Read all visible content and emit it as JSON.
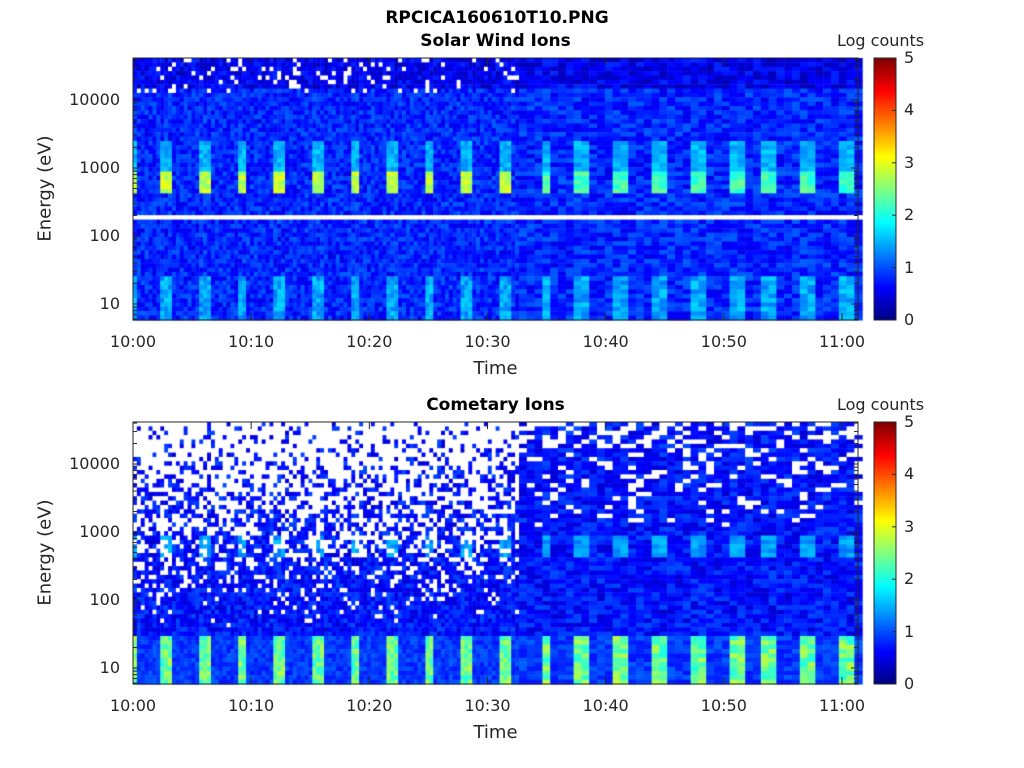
{
  "chart_data": [
    {
      "type": "heatmap",
      "title": "RPCICA160610T10.PNG",
      "subtitle": "Solar Wind Ions",
      "xlabel": "Time",
      "ylabel": "Energy (eV)",
      "xticks": [
        "10:00",
        "10:10",
        "10:20",
        "10:30",
        "10:40",
        "10:50",
        "11:00"
      ],
      "xlim_minutes": [
        0,
        61.3
      ],
      "yticks": [
        "10",
        "100",
        "1000",
        "10000"
      ],
      "yscale": "log",
      "ylim": [
        5.8,
        40000
      ],
      "colorbar": {
        "label": "Log counts",
        "ticks": [
          "0",
          "1",
          "2",
          "3",
          "4",
          "5"
        ],
        "range": [
          0,
          5
        ],
        "colormap": "jet"
      },
      "pulse_period_min": 3.17,
      "pulse_first_min": 2.5,
      "pulse_energy_eV": [
        500,
        900
      ],
      "pulse_peak_log": 2.8,
      "background_log": 0.8,
      "gap_line_eV": 210,
      "resolution_change_min": 32.5
    },
    {
      "type": "heatmap",
      "title": "Cometary Ions",
      "xlabel": "Time",
      "ylabel": "Energy (eV)",
      "xticks": [
        "10:00",
        "10:10",
        "10:20",
        "10:30",
        "10:40",
        "10:50",
        "11:00"
      ],
      "xlim_minutes": [
        0,
        61.3
      ],
      "yticks": [
        "10",
        "100",
        "1000",
        "10000"
      ],
      "yscale": "log",
      "ylim": [
        5.8,
        40000
      ],
      "colorbar": {
        "label": "Log counts",
        "ticks": [
          "0",
          "1",
          "2",
          "3",
          "4",
          "5"
        ],
        "range": [
          0,
          5
        ],
        "colormap": "jet"
      },
      "pulse_period_min": 3.17,
      "pulse_first_min": 2.5,
      "pulse_energy_eV": [
        500,
        900
      ],
      "pulse_peak_log": 1.4,
      "low_energy_band_eV": [
        6,
        30
      ],
      "low_energy_peak_log": 2.5,
      "background_log": 0.7,
      "resolution_change_min": 32.5
    }
  ]
}
